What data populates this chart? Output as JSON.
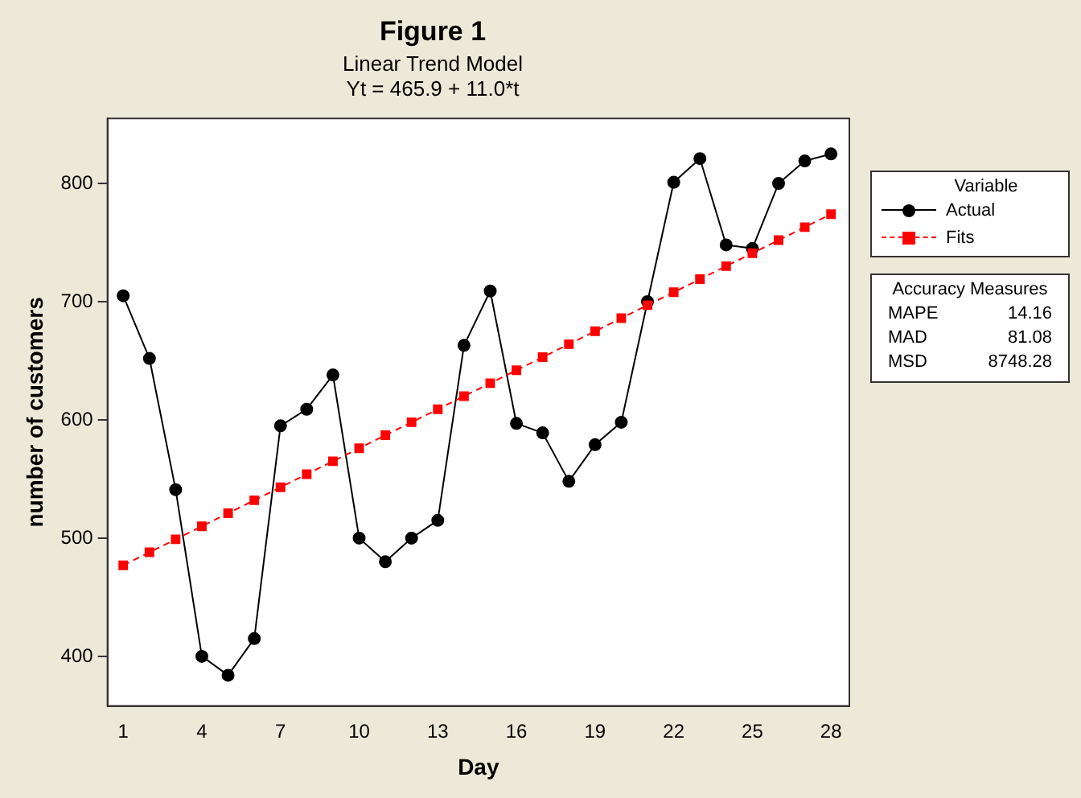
{
  "chart_data": {
    "type": "line",
    "title": "Figure 1",
    "subtitle": "Linear Trend Model\nYt = 465.9 + 11.0*t",
    "xlabel": "Day",
    "ylabel": "number of customers",
    "legend_title": "Variable",
    "x": [
      1,
      2,
      3,
      4,
      5,
      6,
      7,
      8,
      9,
      10,
      11,
      12,
      13,
      14,
      15,
      16,
      17,
      18,
      19,
      20,
      21,
      22,
      23,
      24,
      25,
      26,
      27,
      28
    ],
    "xlim": [
      0.4,
      28.7
    ],
    "xticks": [
      1,
      4,
      7,
      10,
      13,
      16,
      19,
      22,
      25,
      28
    ],
    "ylim": [
      358,
      855
    ],
    "yticks": [
      400,
      500,
      600,
      700,
      800
    ],
    "series": [
      {
        "name": "Actual",
        "color": "#000000",
        "marker": "circle",
        "line_style": "solid",
        "values": [
          705,
          652,
          541,
          400,
          384,
          415,
          595,
          609,
          638,
          500,
          480,
          500,
          515,
          663,
          709,
          597,
          589,
          548,
          579,
          598,
          700,
          801,
          821,
          748,
          745,
          800,
          819,
          825
        ]
      },
      {
        "name": "Fits",
        "color": "#ff0000",
        "marker": "square",
        "line_style": "dashed",
        "values": [
          477,
          488,
          499,
          510,
          521,
          532,
          543,
          554,
          565,
          576,
          587,
          598,
          609,
          620,
          631,
          642,
          653,
          664,
          675,
          686,
          697,
          708,
          719,
          730,
          741,
          752,
          763,
          774
        ]
      }
    ],
    "grid": false,
    "legend": "right",
    "annotations": [
      "Accuracy Measures",
      "MAPE 14.16",
      "MAD 81.08",
      "MSD 8748.28"
    ]
  }
}
